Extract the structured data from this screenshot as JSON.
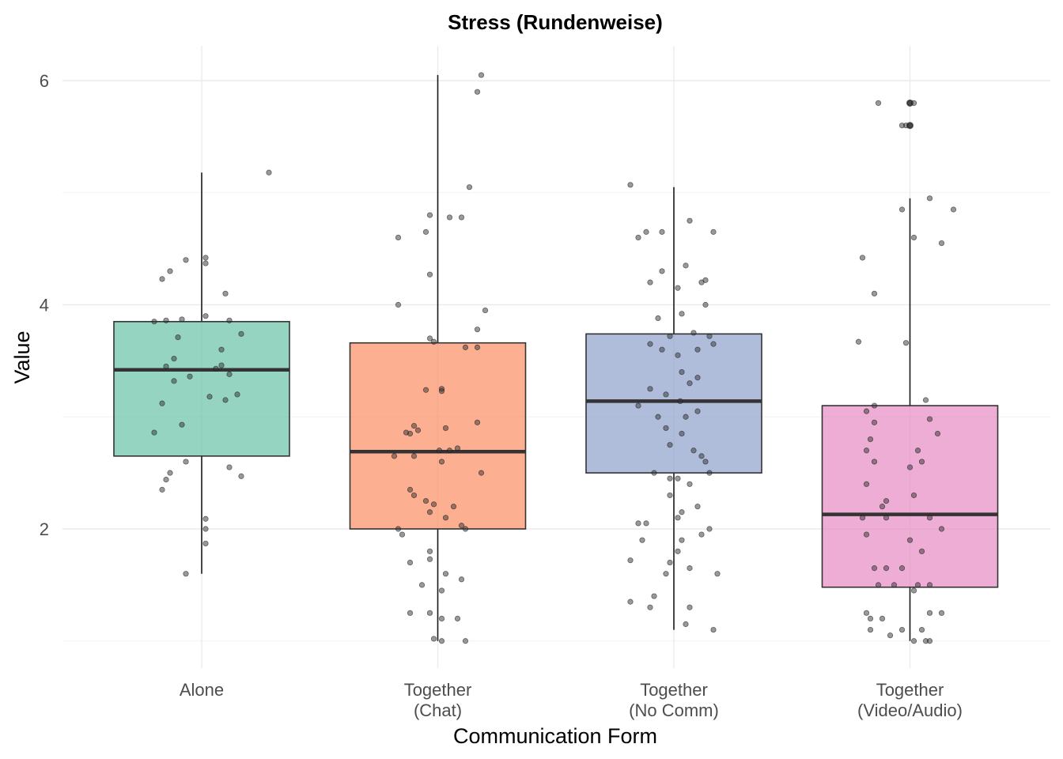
{
  "chart_data": {
    "type": "box",
    "title": "Stress (Rundenweise)",
    "xlabel": "Communication Form",
    "ylabel": "Value",
    "ylim": [
      0.8,
      6.3
    ],
    "yticks": [
      2,
      4,
      6
    ],
    "grid": true,
    "legend": "none",
    "categories": [
      [
        "Alone"
      ],
      [
        "Together",
        "(Chat)"
      ],
      [
        "Together",
        "(No Comm)"
      ],
      [
        "Together",
        "(Video/Audio)"
      ]
    ],
    "boxes": [
      {
        "color": "#66c2a5",
        "min": 1.6,
        "q1": 2.65,
        "median": 3.42,
        "q3": 3.85,
        "max": 5.18,
        "outliers": []
      },
      {
        "color": "#fc8d62",
        "min": 1.0,
        "q1": 2.0,
        "median": 2.69,
        "q3": 3.66,
        "max": 6.05,
        "outliers": []
      },
      {
        "color": "#8da0cb",
        "min": 1.1,
        "q1": 2.5,
        "median": 3.14,
        "q3": 3.74,
        "max": 5.05,
        "outliers": []
      },
      {
        "color": "#e78ac3",
        "min": 1.0,
        "q1": 1.48,
        "median": 2.13,
        "q3": 3.1,
        "max": 4.95,
        "outliers": [
          5.8,
          5.6
        ]
      }
    ],
    "points": [
      [
        [
          0.85,
          5.18
        ],
        [
          -0.2,
          4.4
        ],
        [
          0.05,
          4.42
        ],
        [
          0.05,
          4.37
        ],
        [
          -0.5,
          4.23
        ],
        [
          -0.4,
          4.3
        ],
        [
          0.3,
          4.1
        ],
        [
          -0.25,
          3.87
        ],
        [
          -0.45,
          3.86
        ],
        [
          0.05,
          3.9
        ],
        [
          0.35,
          3.86
        ],
        [
          0.5,
          3.74
        ],
        [
          -0.3,
          3.71
        ],
        [
          -0.6,
          3.85
        ],
        [
          -0.35,
          3.52
        ],
        [
          0.25,
          3.6
        ],
        [
          -0.45,
          3.45
        ],
        [
          0.18,
          3.43
        ],
        [
          -0.35,
          3.32
        ],
        [
          0.25,
          3.46
        ],
        [
          0.35,
          3.38
        ],
        [
          -0.15,
          3.36
        ],
        [
          0.3,
          3.15
        ],
        [
          0.1,
          3.18
        ],
        [
          -0.5,
          3.12
        ],
        [
          0.45,
          3.2
        ],
        [
          -0.6,
          2.86
        ],
        [
          -0.25,
          2.93
        ],
        [
          -0.4,
          2.5
        ],
        [
          -0.2,
          2.6
        ],
        [
          0.35,
          2.55
        ],
        [
          -0.45,
          2.44
        ],
        [
          0.5,
          2.47
        ],
        [
          -0.5,
          2.35
        ],
        [
          0.05,
          2.09
        ],
        [
          0.05,
          2.0
        ],
        [
          0.05,
          1.87
        ],
        [
          -0.2,
          1.6
        ]
      ],
      [
        [
          0.55,
          6.05
        ],
        [
          0.5,
          5.9
        ],
        [
          -0.1,
          4.8
        ],
        [
          0.15,
          4.78
        ],
        [
          0.3,
          4.78
        ],
        [
          -0.15,
          4.65
        ],
        [
          -0.5,
          4.6
        ],
        [
          0.4,
          5.05
        ],
        [
          -0.1,
          4.27
        ],
        [
          -0.5,
          4.0
        ],
        [
          0.6,
          3.95
        ],
        [
          0.5,
          3.78
        ],
        [
          -0.1,
          3.7
        ],
        [
          -0.05,
          3.67
        ],
        [
          0.5,
          3.62
        ],
        [
          0.35,
          3.62
        ],
        [
          0.05,
          3.25
        ],
        [
          -0.15,
          3.24
        ],
        [
          0.05,
          3.23
        ],
        [
          0.5,
          2.95
        ],
        [
          0.1,
          2.9
        ],
        [
          -0.3,
          2.92
        ],
        [
          -0.25,
          2.88
        ],
        [
          -0.35,
          2.85
        ],
        [
          -0.4,
          2.86
        ],
        [
          -0.3,
          2.65
        ],
        [
          -0.55,
          2.65
        ],
        [
          0.02,
          2.7
        ],
        [
          0.15,
          2.7
        ],
        [
          0.25,
          2.72
        ],
        [
          0.05,
          2.6
        ],
        [
          0.55,
          2.5
        ],
        [
          -0.35,
          2.35
        ],
        [
          -0.3,
          2.3
        ],
        [
          -0.15,
          2.25
        ],
        [
          -0.05,
          2.22
        ],
        [
          0.2,
          2.2
        ],
        [
          -0.1,
          2.15
        ],
        [
          0.1,
          2.1
        ],
        [
          0.3,
          2.03
        ],
        [
          0.35,
          2.0
        ],
        [
          -0.5,
          2.0
        ],
        [
          -0.45,
          1.95
        ],
        [
          -0.1,
          1.8
        ],
        [
          -0.35,
          1.7
        ],
        [
          -0.1,
          1.73
        ],
        [
          0.1,
          1.6
        ],
        [
          0.3,
          1.55
        ],
        [
          -0.2,
          1.5
        ],
        [
          0.05,
          1.45
        ],
        [
          -0.1,
          1.25
        ],
        [
          -0.35,
          1.25
        ],
        [
          0.05,
          1.2
        ],
        [
          0.25,
          1.2
        ],
        [
          -0.05,
          1.02
        ],
        [
          0.05,
          1.0
        ],
        [
          0.35,
          1.0
        ]
      ],
      [
        [
          -0.55,
          5.07
        ],
        [
          -0.35,
          4.65
        ],
        [
          -0.45,
          4.6
        ],
        [
          -0.15,
          4.65
        ],
        [
          0.2,
          4.75
        ],
        [
          0.5,
          4.65
        ],
        [
          -0.15,
          4.3
        ],
        [
          0.15,
          4.35
        ],
        [
          0.35,
          4.2
        ],
        [
          0.4,
          4.22
        ],
        [
          0.05,
          4.15
        ],
        [
          -0.3,
          4.2
        ],
        [
          0.4,
          4.0
        ],
        [
          -0.2,
          3.88
        ],
        [
          0.1,
          3.92
        ],
        [
          0.25,
          3.75
        ],
        [
          0.45,
          3.72
        ],
        [
          -0.05,
          3.72
        ],
        [
          -0.3,
          3.65
        ],
        [
          -0.15,
          3.6
        ],
        [
          0.3,
          3.6
        ],
        [
          0.5,
          3.65
        ],
        [
          0.05,
          3.55
        ],
        [
          0.1,
          3.4
        ],
        [
          0.2,
          3.3
        ],
        [
          0.3,
          3.35
        ],
        [
          -0.3,
          3.25
        ],
        [
          -0.1,
          3.2
        ],
        [
          0.08,
          3.14
        ],
        [
          -0.45,
          3.1
        ],
        [
          0.3,
          3.05
        ],
        [
          -0.2,
          3.0
        ],
        [
          0.15,
          3.0
        ],
        [
          -0.1,
          2.9
        ],
        [
          0.1,
          2.85
        ],
        [
          -0.05,
          2.75
        ],
        [
          0.25,
          2.7
        ],
        [
          0.35,
          2.65
        ],
        [
          -0.25,
          2.5
        ],
        [
          -0.05,
          2.45
        ],
        [
          0.05,
          2.45
        ],
        [
          0.2,
          2.4
        ],
        [
          0.4,
          2.6
        ],
        [
          0.45,
          2.5
        ],
        [
          -0.05,
          2.3
        ],
        [
          0.3,
          2.2
        ],
        [
          0.1,
          2.15
        ],
        [
          0.05,
          2.1
        ],
        [
          -0.45,
          2.05
        ],
        [
          -0.35,
          2.05
        ],
        [
          0.45,
          2.0
        ],
        [
          0.35,
          1.95
        ],
        [
          0.1,
          1.9
        ],
        [
          -0.4,
          1.9
        ],
        [
          0.05,
          1.8
        ],
        [
          -0.05,
          1.7
        ],
        [
          -0.55,
          1.72
        ],
        [
          0.2,
          1.65
        ],
        [
          -0.1,
          1.6
        ],
        [
          0.55,
          1.6
        ],
        [
          -0.25,
          1.4
        ],
        [
          -0.3,
          1.3
        ],
        [
          -0.55,
          1.35
        ],
        [
          0.15,
          1.15
        ],
        [
          0.5,
          1.1
        ],
        [
          0.2,
          1.3
        ]
      ],
      [
        [
          -0.4,
          5.8
        ],
        [
          -0.05,
          5.6
        ],
        [
          0.0,
          5.6
        ],
        [
          0.0,
          5.8
        ],
        [
          0.05,
          5.8
        ],
        [
          -0.1,
          5.6
        ],
        [
          0.25,
          4.95
        ],
        [
          -0.1,
          4.85
        ],
        [
          0.55,
          4.85
        ],
        [
          0.05,
          4.6
        ],
        [
          0.4,
          4.55
        ],
        [
          -0.6,
          4.42
        ],
        [
          -0.45,
          4.1
        ],
        [
          -0.65,
          3.67
        ],
        [
          -0.05,
          3.66
        ],
        [
          -0.55,
          3.05
        ],
        [
          -0.45,
          3.1
        ],
        [
          0.2,
          3.15
        ],
        [
          -0.45,
          2.95
        ],
        [
          -0.5,
          2.8
        ],
        [
          0.25,
          2.98
        ],
        [
          0.35,
          2.85
        ],
        [
          0.1,
          2.7
        ],
        [
          -0.55,
          2.7
        ],
        [
          0.15,
          2.6
        ],
        [
          -0.45,
          2.6
        ],
        [
          0.0,
          2.55
        ],
        [
          -0.55,
          2.4
        ],
        [
          0.05,
          2.3
        ],
        [
          -0.3,
          2.25
        ],
        [
          -0.35,
          2.2
        ],
        [
          0.25,
          2.1
        ],
        [
          -0.3,
          2.1
        ],
        [
          -0.6,
          2.1
        ],
        [
          0.4,
          2.0
        ],
        [
          -0.55,
          1.95
        ],
        [
          0.0,
          1.9
        ],
        [
          0.15,
          1.8
        ],
        [
          -0.45,
          1.65
        ],
        [
          -0.3,
          1.65
        ],
        [
          -0.1,
          1.65
        ],
        [
          -0.2,
          1.5
        ],
        [
          -0.4,
          1.5
        ],
        [
          0.1,
          1.5
        ],
        [
          0.25,
          1.5
        ],
        [
          0.05,
          1.45
        ],
        [
          -0.55,
          1.25
        ],
        [
          -0.35,
          1.2
        ],
        [
          0.25,
          1.25
        ],
        [
          0.4,
          1.25
        ],
        [
          -0.5,
          1.2
        ],
        [
          -0.1,
          1.1
        ],
        [
          0.15,
          1.1
        ],
        [
          -0.25,
          1.05
        ],
        [
          0.05,
          1.0
        ],
        [
          0.2,
          1.0
        ],
        [
          0.25,
          1.0
        ],
        [
          -0.5,
          1.1
        ]
      ]
    ]
  }
}
